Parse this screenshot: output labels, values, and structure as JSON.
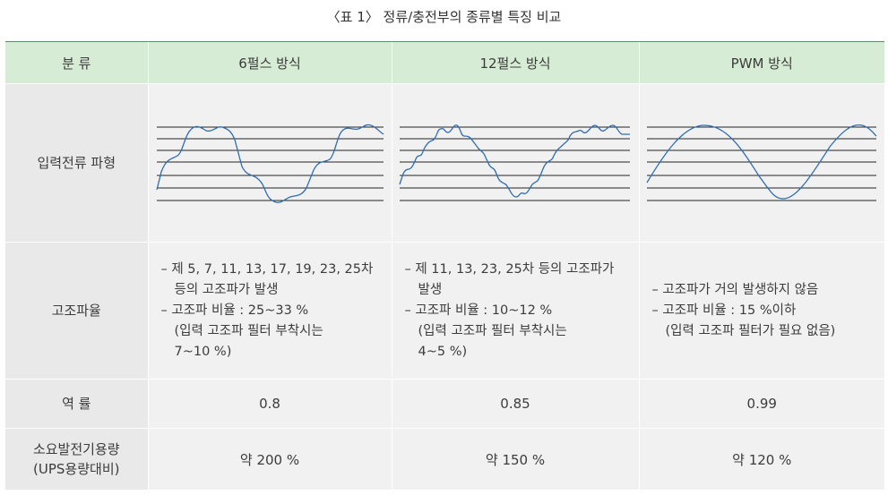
{
  "caption": "〈표 1〉 정류/충전부의 종류별 특징 비교",
  "header": {
    "col0": "분 류",
    "col1": "6펄스 방식",
    "col2": "12펄스 방식",
    "col3": "PWM 방식"
  },
  "rows": {
    "waveform": {
      "label": "입력전류 파형"
    },
    "harmonic": {
      "label": "고조파율",
      "pulse6": {
        "line1": "– 제 5, 7, 11, 13, 17, 19, 23, 25차",
        "line1b": "등의 고조파가 발생",
        "line2": "– 고조파 비율 : 25~33 %",
        "line3": "(입력 고조파 필터 부착시는",
        "line3b": "7~10 %)"
      },
      "pulse12": {
        "line1": "– 제 11, 13, 23, 25차 등의 고조파가",
        "line1b": "발생",
        "line2": "– 고조파 비율 : 10~12 %",
        "line3": "(입력 고조파 필터 부착시는",
        "line3b": "4~5 %)"
      },
      "pwm": {
        "line1": "– 고조파가 거의 발생하지 않음",
        "line2": "– 고조파 비율 : 15 %이하",
        "line3": "(입력 고조파 필터가 필요 없음)"
      }
    },
    "power_factor": {
      "label": "역 률",
      "pulse6": "0.8",
      "pulse12": "0.85",
      "pwm": "0.99"
    },
    "capacity": {
      "label_line1": "소요발전기용량",
      "label_line2": "(UPS용량대비)",
      "pulse6": "약 200 %",
      "pulse12": "약 150 %",
      "pwm": "약 120 %"
    }
  },
  "colors": {
    "header_bg": "#d7ecd4",
    "cell_bg": "#f1f1f1",
    "label_bg": "#e9e9e9",
    "wave": "#2f6db3",
    "rule": "#5d8d6a"
  }
}
